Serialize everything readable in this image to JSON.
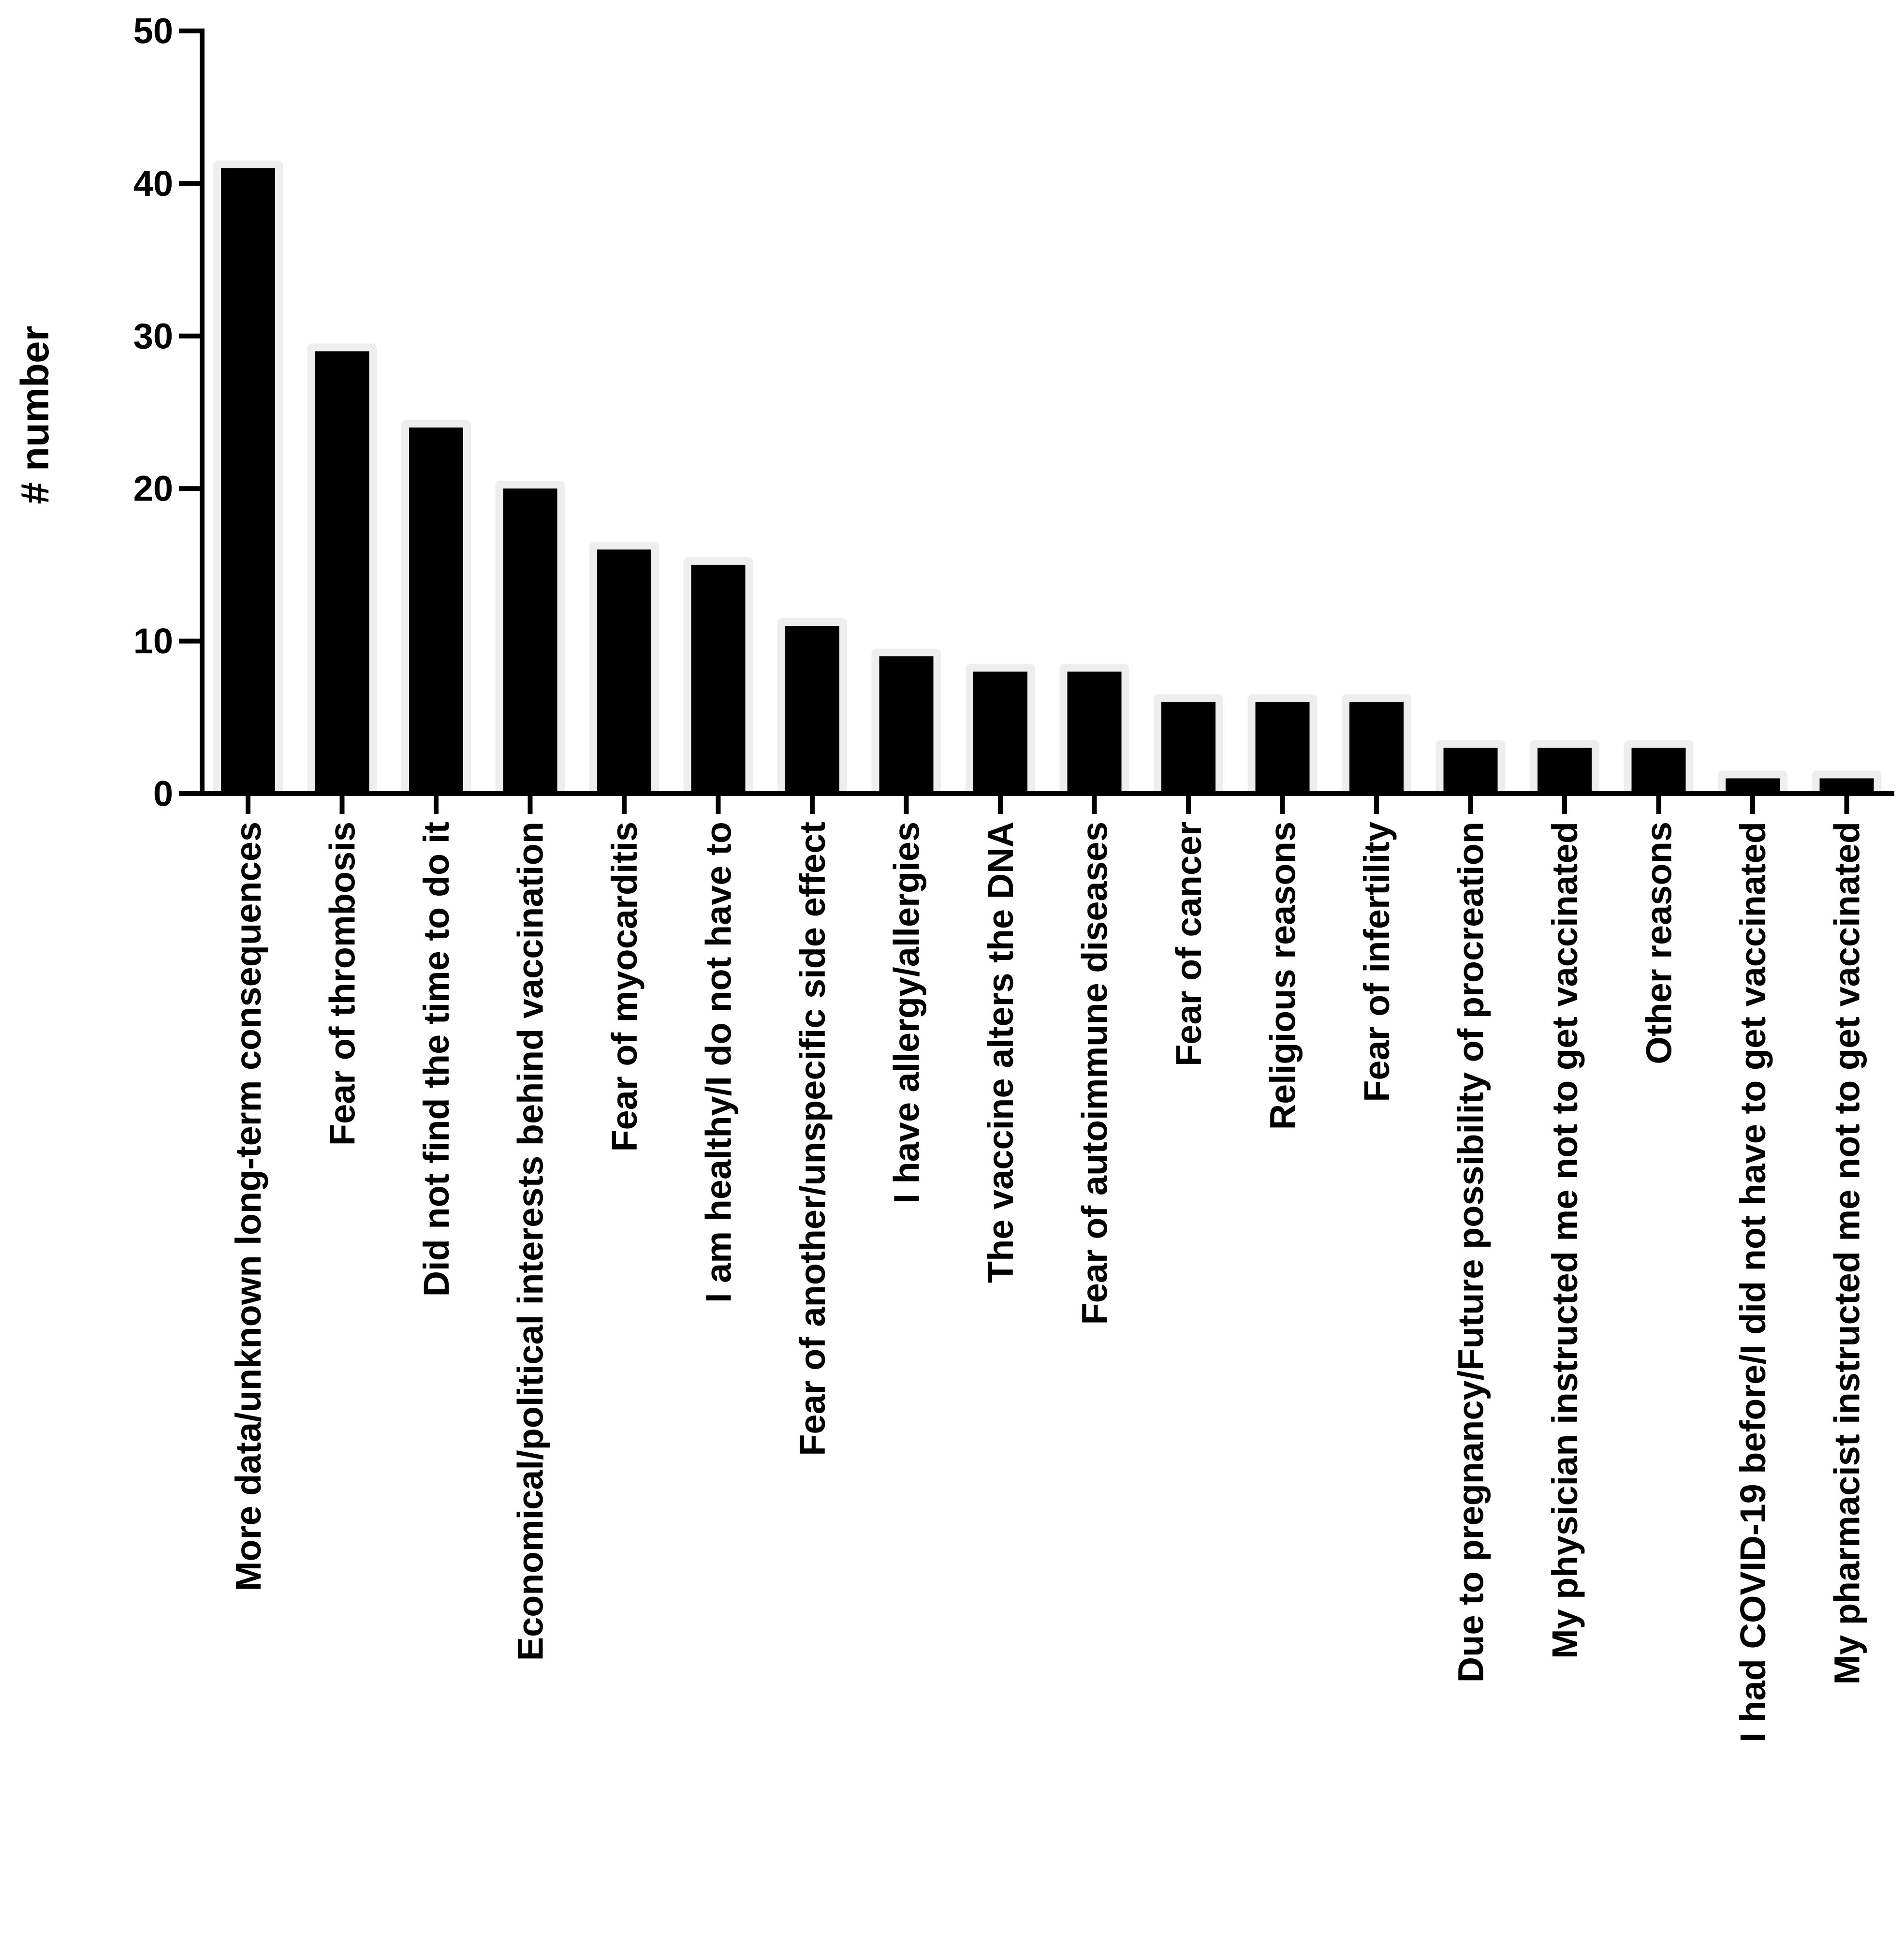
{
  "chart_data": {
    "type": "bar",
    "ylabel": "# number",
    "xlabel": "",
    "ylim": [
      0,
      50
    ],
    "yticks": [
      0,
      10,
      20,
      30,
      40,
      50
    ],
    "grid": false,
    "bar_color": "#000000",
    "bar_outline_color": "#eeeeee",
    "categories": [
      "More data/unknown long-term consequences",
      "Fear of thrombosis",
      "Did not find the time to do it",
      "Economical/political interests behind vaccination",
      "Fear of myocarditis",
      "I am healthy/I do not have to",
      "Fear of another/unspecific side effect",
      "I have allergy/allergies",
      "The vaccine alters the DNA",
      "Fear of autoimmune diseases",
      "Fear of cancer",
      "Religious reasons",
      "Fear of infertility",
      "Due to pregnancy/Future possibility of procreation",
      "My physician instructed me not to get vaccinated",
      "Other reasons",
      "I had COVID-19 before/I did not have to get vaccinated",
      "My pharmacist instructed me not to get vaccinated"
    ],
    "values": [
      41,
      29,
      24,
      20,
      16,
      15,
      11,
      9,
      8,
      8,
      6,
      6,
      6,
      3,
      3,
      3,
      1,
      1
    ]
  }
}
